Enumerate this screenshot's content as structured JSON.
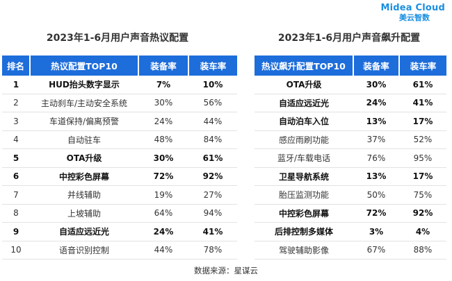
{
  "brand": {
    "name": "Midea Cloud",
    "sub": "美云智数"
  },
  "left_table": {
    "title": "2023年1-6月用户声音热议配置",
    "headers": [
      "排名",
      "热议配置TOP10",
      "装备率",
      "装车率"
    ],
    "rows": [
      {
        "rank": "1",
        "name": "HUD抬头数字显示",
        "equip": "7%",
        "install": "10%",
        "bold": true
      },
      {
        "rank": "2",
        "name": "主动刹车/主动安全系统",
        "equip": "30%",
        "install": "56%",
        "bold": false
      },
      {
        "rank": "3",
        "name": "车道保持/偏离预警",
        "equip": "24%",
        "install": "44%",
        "bold": false
      },
      {
        "rank": "4",
        "name": "自动驻车",
        "equip": "48%",
        "install": "84%",
        "bold": false
      },
      {
        "rank": "5",
        "name": "OTA升级",
        "equip": "30%",
        "install": "61%",
        "bold": true
      },
      {
        "rank": "6",
        "name": "中控彩色屏幕",
        "equip": "72%",
        "install": "92%",
        "bold": true
      },
      {
        "rank": "7",
        "name": "并线辅助",
        "equip": "19%",
        "install": "27%",
        "bold": false
      },
      {
        "rank": "8",
        "name": "上坡辅助",
        "equip": "64%",
        "install": "94%",
        "bold": false
      },
      {
        "rank": "9",
        "name": "自适应远近光",
        "equip": "24%",
        "install": "41%",
        "bold": true
      },
      {
        "rank": "10",
        "name": "语音识别控制",
        "equip": "44%",
        "install": "78%",
        "bold": false
      }
    ]
  },
  "right_table": {
    "title": "2023年1-6月用户声音飙升配置",
    "headers": [
      "热议飙升配置TOP10",
      "装备率",
      "装车率"
    ],
    "rows": [
      {
        "name": "OTA升级",
        "equip": "30%",
        "install": "61%",
        "bold": true
      },
      {
        "name": "自适应远近光",
        "equip": "24%",
        "install": "41%",
        "bold": true
      },
      {
        "name": "自动泊车入位",
        "equip": "13%",
        "install": "17%",
        "bold": true
      },
      {
        "name": "感应雨刷功能",
        "equip": "37%",
        "install": "52%",
        "bold": false
      },
      {
        "name": "蓝牙/车载电话",
        "equip": "76%",
        "install": "95%",
        "bold": false
      },
      {
        "name": "卫星导航系统",
        "equip": "13%",
        "install": "17%",
        "bold": true
      },
      {
        "name": "胎压监测功能",
        "equip": "50%",
        "install": "75%",
        "bold": false
      },
      {
        "name": "中控彩色屏幕",
        "equip": "72%",
        "install": "92%",
        "bold": true
      },
      {
        "name": "后排控制多媒体",
        "equip": "3%",
        "install": "4%",
        "bold": true
      },
      {
        "name": "驾驶辅助影像",
        "equip": "67%",
        "install": "88%",
        "bold": false
      }
    ]
  },
  "source": "数据来源：星谋云",
  "colors": {
    "header_bg": "#1d6ddb",
    "brand": "#1a8fe0"
  }
}
